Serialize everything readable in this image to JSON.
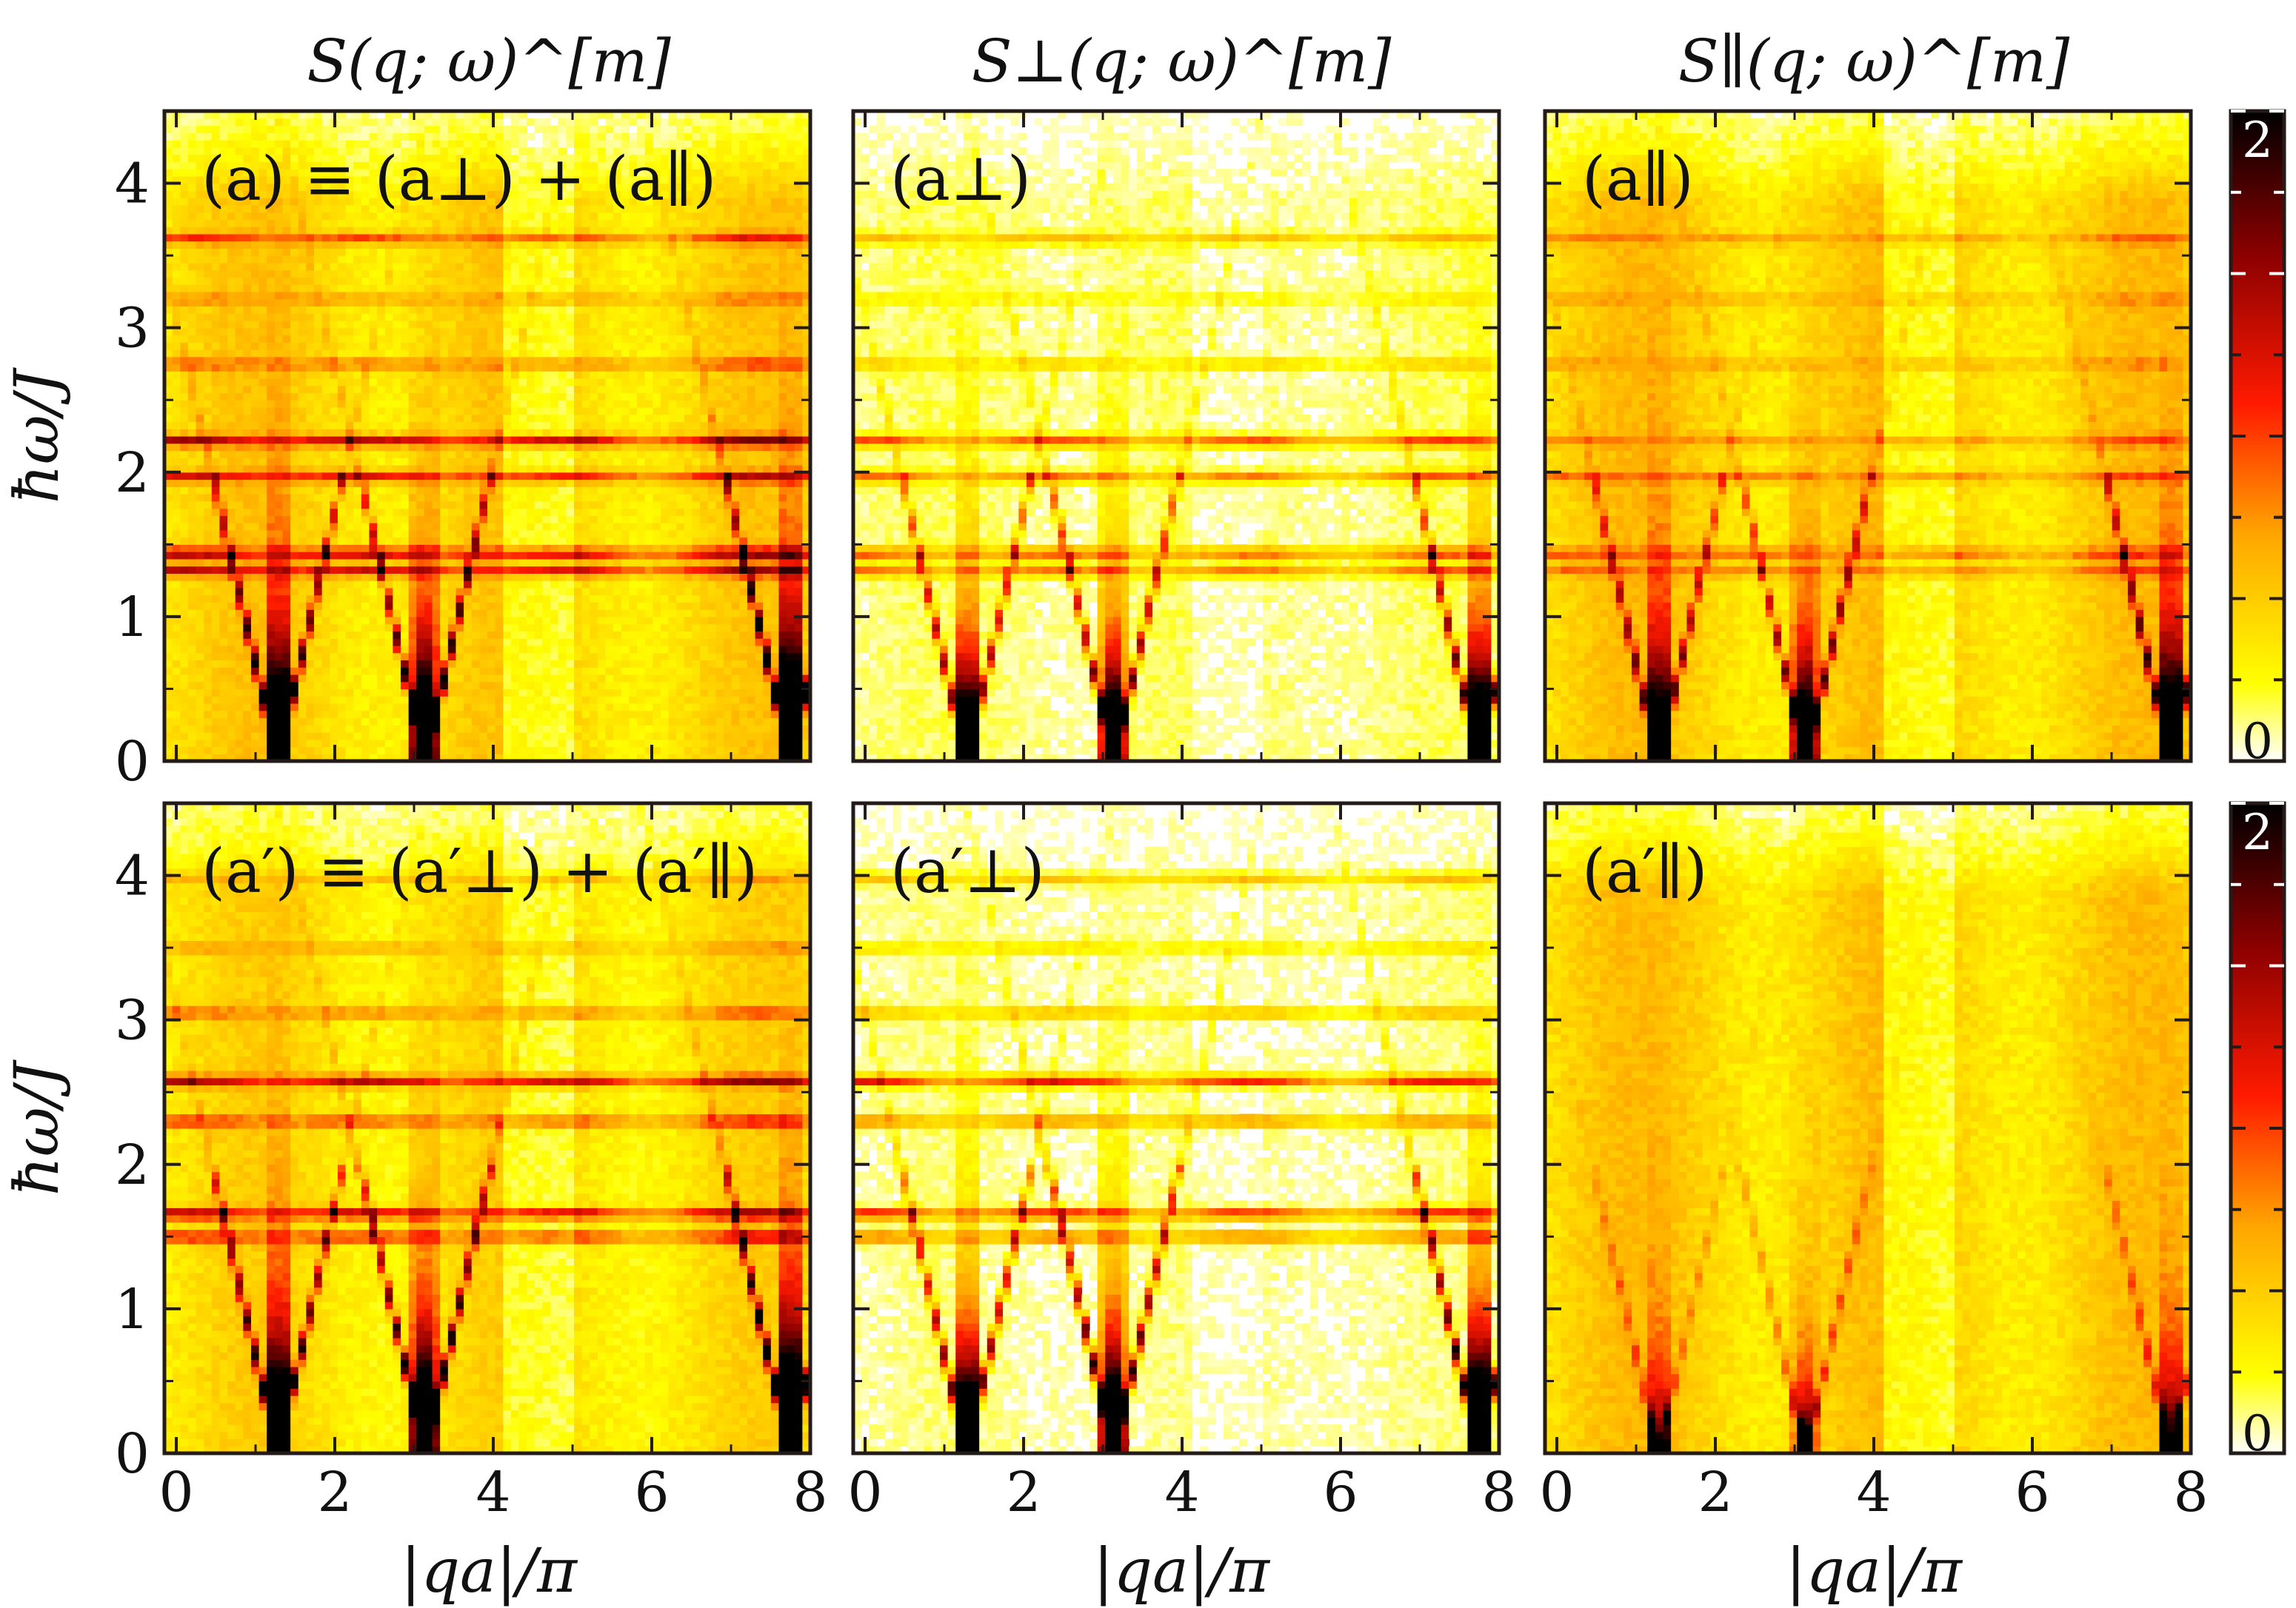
{
  "figure": {
    "column_titles": [
      "S(q; ω)^[m]",
      "S⊥(q; ω)^[m]",
      "S∥(q; ω)^[m]"
    ],
    "xlabel": "|qa|/π",
    "ylabel": "ħω/J"
  },
  "colors": {
    "colormap": [
      "#ffffff",
      "#ffff00",
      "#ffa500",
      "#ff0000",
      "#8b0000",
      "#000000"
    ],
    "frame": "#231a1a"
  },
  "chart_data": [
    {
      "type": "heatmap",
      "panel_label": "(a) ≡ (a⊥) + (a∥)",
      "title": "S(q; ω)^[m]",
      "xlabel": "",
      "ylabel": "ħω/J",
      "xlim": [
        -0.15,
        8.0
      ],
      "ylim": [
        0,
        4.5
      ],
      "x_ticks": [
        "0",
        "2",
        "4",
        "6",
        "8"
      ],
      "y_ticks": [
        "0",
        "1",
        "2",
        "3",
        "4"
      ],
      "show_xtick_labels": false,
      "show_ylabel": true,
      "flat_bands": [
        {
          "e": 3.62,
          "w": 0.6
        },
        {
          "e": 3.2,
          "w": 0.35
        },
        {
          "e": 2.75,
          "w": 0.5
        },
        {
          "e": 2.22,
          "w": 1.0
        },
        {
          "e": 1.97,
          "w": 0.8
        },
        {
          "e": 1.44,
          "w": 1.0
        },
        {
          "e": 1.32,
          "w": 0.9
        }
      ],
      "v_modes": [
        {
          "q": 1.28,
          "w": 1.2
        },
        {
          "q": 3.14,
          "w": 1.3
        },
        {
          "q": 7.75,
          "w": 1.5
        }
      ],
      "background": 0.28
    },
    {
      "type": "heatmap",
      "panel_label": "(a⊥)",
      "title": "S⊥(q; ω)^[m]",
      "xlim": [
        -0.15,
        8.0
      ],
      "ylim": [
        0,
        4.5
      ],
      "x_ticks": [
        "0",
        "2",
        "4",
        "6",
        "8"
      ],
      "y_ticks": [
        "0",
        "1",
        "2",
        "3",
        "4"
      ],
      "show_xtick_labels": false,
      "show_ylabel": false,
      "flat_bands": [
        {
          "e": 3.62,
          "w": 0.45
        },
        {
          "e": 3.2,
          "w": 0.2
        },
        {
          "e": 2.75,
          "w": 0.35
        },
        {
          "e": 2.22,
          "w": 0.8
        },
        {
          "e": 1.97,
          "w": 0.7
        },
        {
          "e": 1.44,
          "w": 0.8
        },
        {
          "e": 1.32,
          "w": 0.7
        }
      ],
      "v_modes": [
        {
          "q": 1.28,
          "w": 1.1
        },
        {
          "q": 3.14,
          "w": 1.2
        },
        {
          "q": 7.75,
          "w": 1.3
        }
      ],
      "background": 0.08
    },
    {
      "type": "heatmap",
      "panel_label": "(a∥)",
      "title": "S∥(q; ω)^[m]",
      "xlim": [
        -0.15,
        8.0
      ],
      "ylim": [
        0,
        4.5
      ],
      "x_ticks": [
        "0",
        "2",
        "4",
        "6",
        "8"
      ],
      "y_ticks": [
        "0",
        "1",
        "2",
        "3",
        "4"
      ],
      "show_xtick_labels": false,
      "show_ylabel": false,
      "flat_bands": [
        {
          "e": 3.62,
          "w": 0.3
        },
        {
          "e": 3.2,
          "w": 0.2
        },
        {
          "e": 2.75,
          "w": 0.25
        },
        {
          "e": 2.22,
          "w": 0.35
        },
        {
          "e": 1.97,
          "w": 0.4
        },
        {
          "e": 1.44,
          "w": 0.5
        },
        {
          "e": 1.32,
          "w": 0.4
        }
      ],
      "v_modes": [
        {
          "q": 1.28,
          "w": 0.9
        },
        {
          "q": 3.14,
          "w": 1.0
        },
        {
          "q": 7.75,
          "w": 1.1
        }
      ],
      "background": 0.3
    },
    {
      "type": "heatmap",
      "panel_label": "(a′) ≡ (a′⊥) + (a′∥)",
      "title": "",
      "xlabel": "|qa|/π",
      "ylabel": "ħω/J",
      "xlim": [
        -0.15,
        8.0
      ],
      "ylim": [
        0,
        4.5
      ],
      "x_ticks": [
        "0",
        "2",
        "4",
        "6",
        "8"
      ],
      "y_ticks": [
        "0",
        "1",
        "2",
        "3",
        "4"
      ],
      "show_xtick_labels": true,
      "show_ylabel": true,
      "flat_bands": [
        {
          "e": 3.98,
          "w": 0.3
        },
        {
          "e": 3.5,
          "w": 0.3
        },
        {
          "e": 3.05,
          "w": 0.5
        },
        {
          "e": 2.58,
          "w": 1.0
        },
        {
          "e": 2.3,
          "w": 0.7
        },
        {
          "e": 1.66,
          "w": 1.0
        },
        {
          "e": 1.5,
          "w": 0.8
        }
      ],
      "v_modes": [
        {
          "q": 1.28,
          "w": 1.2
        },
        {
          "q": 3.14,
          "w": 1.4
        },
        {
          "q": 7.75,
          "w": 1.5
        }
      ],
      "background": 0.25
    },
    {
      "type": "heatmap",
      "panel_label": "(a′⊥)",
      "title": "",
      "xlabel": "|qa|/π",
      "xlim": [
        -0.15,
        8.0
      ],
      "ylim": [
        0,
        4.5
      ],
      "x_ticks": [
        "0",
        "2",
        "4",
        "6",
        "8"
      ],
      "y_ticks": [
        "0",
        "1",
        "2",
        "3",
        "4"
      ],
      "show_xtick_labels": true,
      "show_ylabel": false,
      "flat_bands": [
        {
          "e": 3.98,
          "w": 0.45
        },
        {
          "e": 3.5,
          "w": 0.3
        },
        {
          "e": 3.05,
          "w": 0.5
        },
        {
          "e": 2.58,
          "w": 1.0
        },
        {
          "e": 2.3,
          "w": 0.7
        },
        {
          "e": 1.66,
          "w": 1.0
        },
        {
          "e": 1.5,
          "w": 0.8
        }
      ],
      "v_modes": [
        {
          "q": 1.28,
          "w": 1.2
        },
        {
          "q": 3.14,
          "w": 1.4
        },
        {
          "q": 7.75,
          "w": 1.5
        }
      ],
      "background": 0.06
    },
    {
      "type": "heatmap",
      "panel_label": "(a′∥)",
      "title": "",
      "xlabel": "|qa|/π",
      "xlim": [
        -0.15,
        8.0
      ],
      "ylim": [
        0,
        4.5
      ],
      "x_ticks": [
        "0",
        "2",
        "4",
        "6",
        "8"
      ],
      "y_ticks": [
        "0",
        "1",
        "2",
        "3",
        "4"
      ],
      "show_xtick_labels": true,
      "show_ylabel": false,
      "flat_bands": [],
      "v_modes": [
        {
          "q": 1.28,
          "w": 0.35
        },
        {
          "q": 3.14,
          "w": 0.45
        },
        {
          "q": 7.75,
          "w": 0.45
        }
      ],
      "background": 0.3
    }
  ],
  "colorbar": {
    "ticks": [
      "2",
      "0"
    ],
    "range": [
      0,
      2
    ]
  }
}
